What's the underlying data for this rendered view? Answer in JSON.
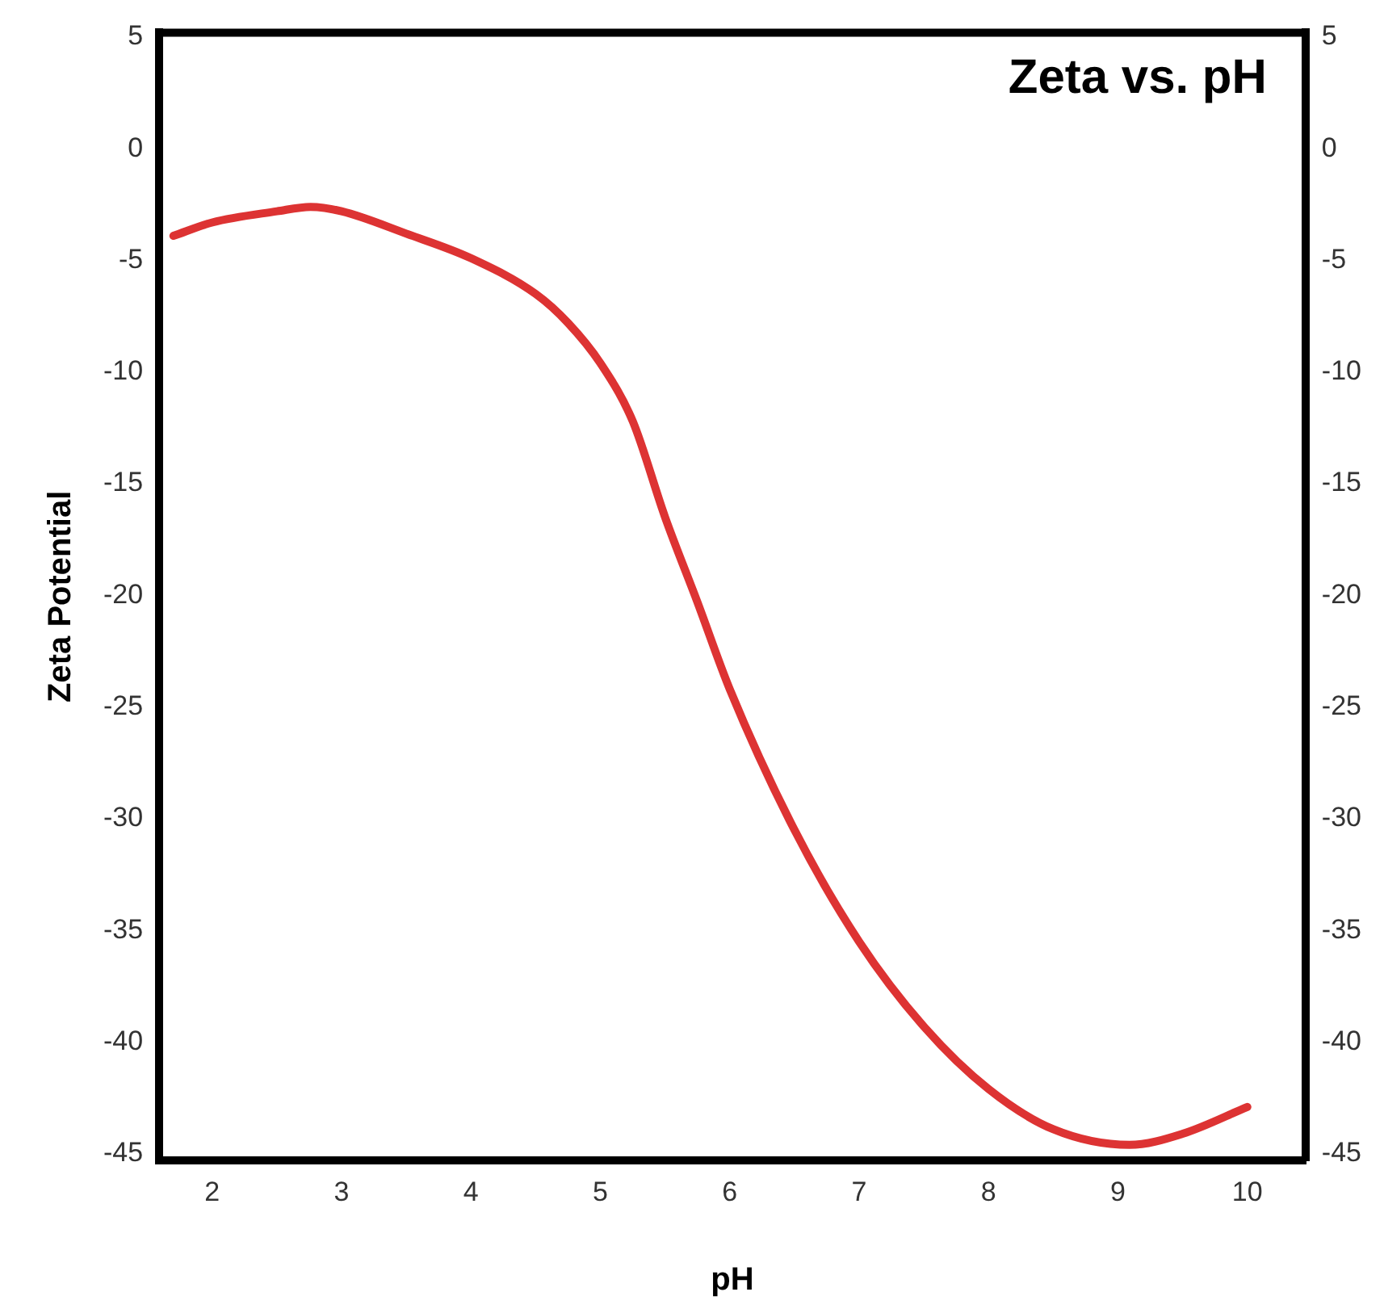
{
  "chart_data": {
    "type": "line",
    "title": "Zeta vs. pH",
    "xlabel": "pH",
    "ylabel": "Zeta Potential",
    "x": [
      1.7,
      2.0,
      2.5,
      2.76,
      3.0,
      3.5,
      4.0,
      4.5,
      4.75,
      5.0,
      5.25,
      5.5,
      5.75,
      6.0,
      6.5,
      7.0,
      7.5,
      8.0,
      8.5,
      9.09,
      9.5,
      10.0
    ],
    "series": [
      {
        "color": "#dd3333",
        "values": [
          -3.9,
          -3.3,
          -2.8,
          -2.6,
          -2.8,
          -3.8,
          -4.9,
          -6.5,
          -7.8,
          -9.6,
          -12.2,
          -16.5,
          -20.3,
          -24.2,
          -30.5,
          -35.5,
          -39.3,
          -42.1,
          -43.9,
          -44.6,
          -44.1,
          -42.9
        ]
      }
    ],
    "xlim": [
      1.59,
      10.45
    ],
    "xticks": [
      2,
      3,
      4,
      5,
      6,
      7,
      8,
      9,
      10
    ],
    "ylim": [
      -45.3,
      5.2
    ],
    "yticks": [
      5,
      0,
      -5,
      -10,
      -15,
      -20,
      -25,
      -30,
      -35,
      -40,
      -45
    ],
    "y2lim": [
      -45.3,
      5.2
    ],
    "y2ticks": [
      5,
      0,
      -5,
      -10,
      -15,
      -20,
      -25,
      -30,
      -35,
      -40,
      -45
    ],
    "legend": false,
    "marker": "none",
    "line_style": "solid"
  }
}
